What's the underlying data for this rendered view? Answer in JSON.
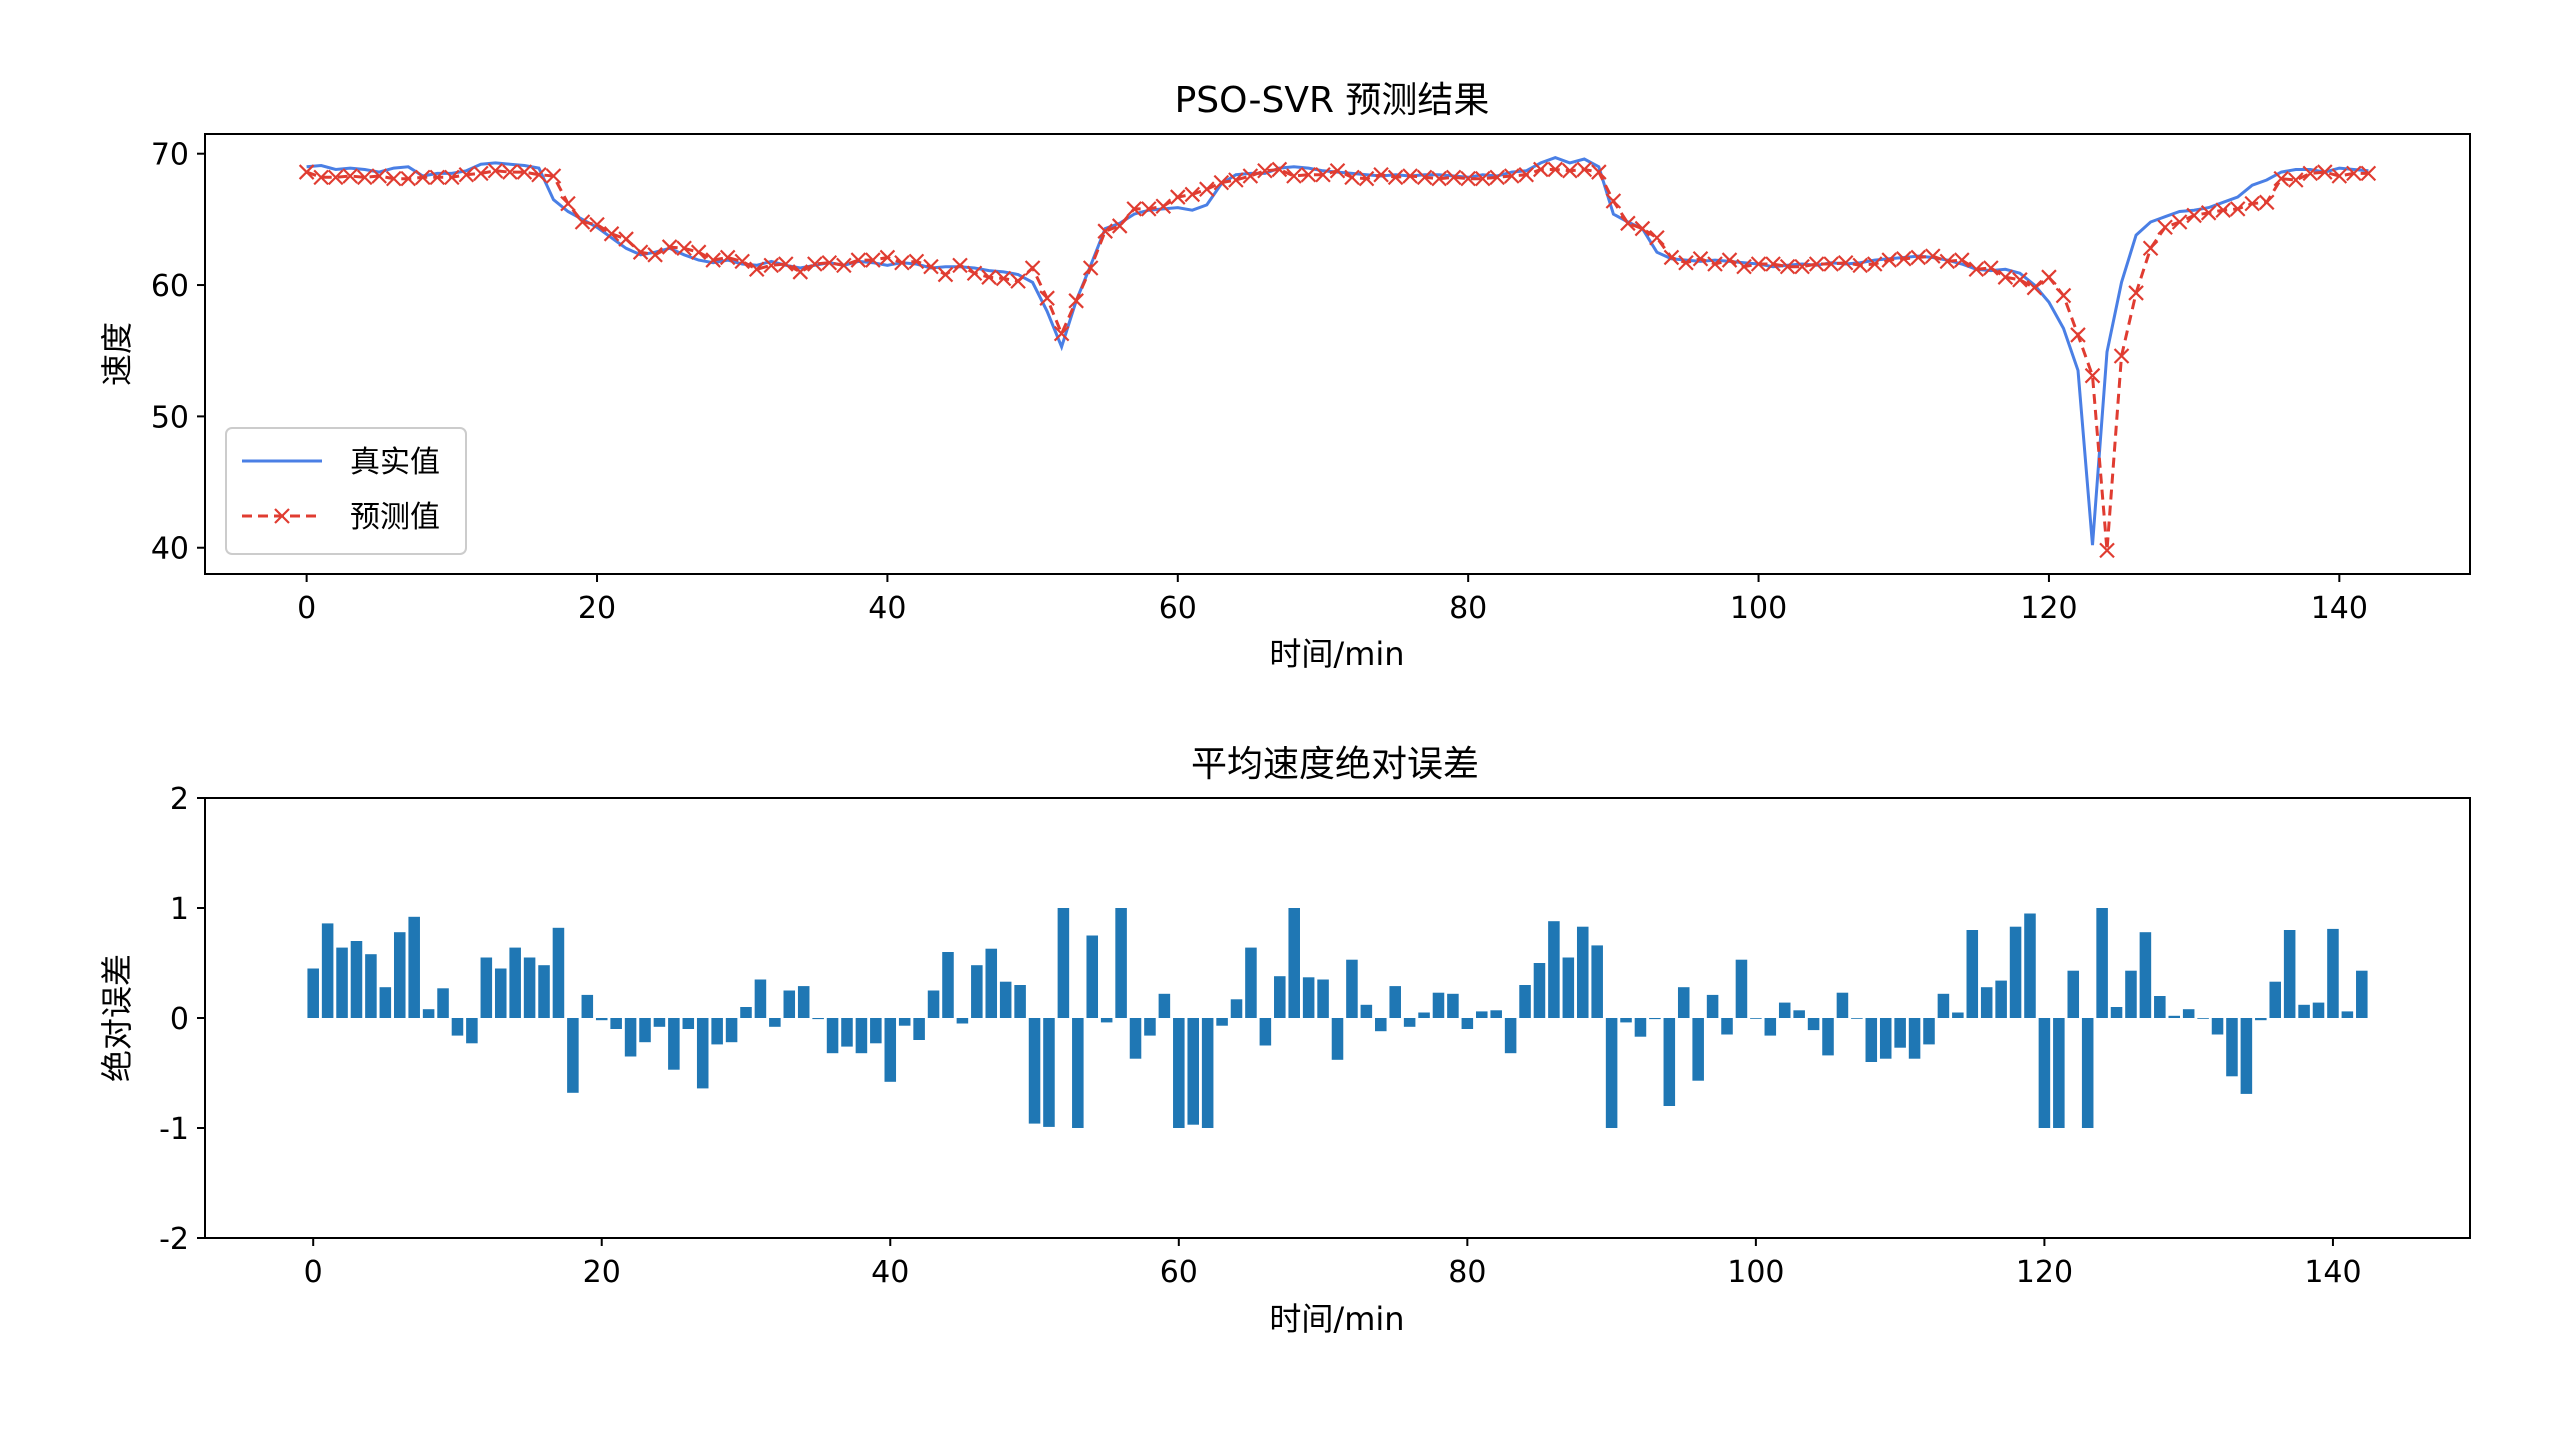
{
  "chart_data": [
    {
      "type": "line",
      "title": "PSO-SVR 预测结果",
      "xlabel": "时间/min",
      "ylabel": "速度",
      "xlim": [
        -7,
        149
      ],
      "ylim": [
        38,
        71.5
      ],
      "xticks": [
        0,
        20,
        40,
        60,
        80,
        100,
        120,
        140
      ],
      "yticks": [
        40,
        50,
        60,
        70
      ],
      "legend_position": "lower-left",
      "series": [
        {
          "name": "真实值",
          "color": "#4a7fe5",
          "style": "solid",
          "x": [
            0,
            1,
            2,
            3,
            4,
            5,
            6,
            7,
            8,
            9,
            10,
            11,
            12,
            13,
            14,
            15,
            16,
            17,
            18,
            19,
            20,
            21,
            22,
            23,
            24,
            25,
            26,
            27,
            28,
            29,
            30,
            31,
            32,
            33,
            34,
            35,
            36,
            37,
            38,
            39,
            40,
            41,
            42,
            43,
            44,
            45,
            46,
            47,
            48,
            49,
            50,
            51,
            52,
            53,
            54,
            55,
            56,
            57,
            58,
            59,
            60,
            61,
            62,
            63,
            64,
            65,
            66,
            67,
            68,
            69,
            70,
            71,
            72,
            73,
            74,
            75,
            76,
            77,
            78,
            79,
            80,
            81,
            82,
            83,
            84,
            85,
            86,
            87,
            88,
            89,
            90,
            91,
            92,
            93,
            94,
            95,
            96,
            97,
            98,
            99,
            100,
            101,
            102,
            103,
            104,
            105,
            106,
            107,
            108,
            109,
            110,
            111,
            112,
            113,
            114,
            115,
            116,
            117,
            118,
            119,
            120,
            121,
            122,
            123,
            124,
            125,
            126,
            127,
            128,
            129,
            130,
            131,
            132,
            133,
            134,
            135,
            136,
            137,
            138,
            139,
            140,
            141,
            142
          ],
          "values": [
            69.0,
            69.1,
            68.8,
            68.9,
            68.8,
            68.6,
            68.9,
            69.0,
            68.3,
            68.5,
            68.5,
            68.7,
            69.2,
            69.3,
            69.2,
            69.1,
            68.9,
            66.5,
            65.6,
            65.0,
            64.4,
            63.6,
            62.8,
            62.3,
            62.5,
            62.8,
            62.3,
            61.9,
            61.7,
            61.9,
            61.6,
            61.5,
            61.8,
            61.5,
            61.3,
            61.5,
            61.7,
            61.5,
            61.8,
            61.7,
            61.5,
            61.7,
            61.6,
            61.3,
            61.4,
            61.4,
            61.3,
            61.1,
            61.0,
            60.8,
            60.2,
            58.0,
            55.3,
            58.8,
            61.5,
            64.3,
            64.7,
            65.4,
            65.7,
            65.8,
            65.9,
            65.7,
            66.1,
            67.7,
            68.4,
            68.5,
            68.5,
            68.9,
            69.0,
            68.9,
            68.7,
            68.6,
            68.5,
            68.4,
            68.3,
            68.4,
            68.3,
            68.4,
            68.4,
            68.3,
            68.2,
            68.4,
            68.3,
            68.6,
            68.7,
            69.3,
            69.7,
            69.3,
            69.6,
            69.0,
            65.4,
            64.8,
            64.3,
            62.5,
            62.0,
            61.9,
            61.8,
            61.9,
            61.8,
            61.7,
            61.6,
            61.4,
            61.5,
            61.6,
            61.5,
            61.7,
            61.6,
            61.7,
            61.9,
            62.0,
            62.1,
            62.2,
            62.1,
            61.9,
            61.6,
            61.2,
            61.1,
            61.2,
            60.9,
            60.0,
            58.7,
            56.7,
            53.5,
            40.2,
            54.9,
            60.2,
            63.8,
            64.8,
            65.2,
            65.6,
            65.7,
            65.9,
            66.3,
            66.7,
            67.6,
            68.0,
            68.6,
            68.8,
            68.8,
            68.6,
            68.9,
            68.8,
            68.7
          ]
        },
        {
          "name": "预测值",
          "color": "#e03c31",
          "style": "dashed-x",
          "x": [
            0,
            1,
            2,
            3,
            4,
            5,
            6,
            7,
            8,
            9,
            10,
            11,
            12,
            13,
            14,
            15,
            16,
            17,
            18,
            19,
            20,
            21,
            22,
            23,
            24,
            25,
            26,
            27,
            28,
            29,
            30,
            31,
            32,
            33,
            34,
            35,
            36,
            37,
            38,
            39,
            40,
            41,
            42,
            43,
            44,
            45,
            46,
            47,
            48,
            49,
            50,
            51,
            52,
            53,
            54,
            55,
            56,
            57,
            58,
            59,
            60,
            61,
            62,
            63,
            64,
            65,
            66,
            67,
            68,
            69,
            70,
            71,
            72,
            73,
            74,
            75,
            76,
            77,
            78,
            79,
            80,
            81,
            82,
            83,
            84,
            85,
            86,
            87,
            88,
            89,
            90,
            91,
            92,
            93,
            94,
            95,
            96,
            97,
            98,
            99,
            100,
            101,
            102,
            103,
            104,
            105,
            106,
            107,
            108,
            109,
            110,
            111,
            112,
            113,
            114,
            115,
            116,
            117,
            118,
            119,
            120,
            121,
            122,
            123,
            124,
            125,
            126,
            127,
            128,
            129,
            130,
            131,
            132,
            133,
            134,
            135,
            136,
            137,
            138,
            139,
            140,
            141,
            142
          ],
          "values": [
            68.6,
            68.2,
            68.2,
            68.3,
            68.2,
            68.3,
            68.1,
            68.1,
            68.2,
            68.2,
            68.2,
            68.4,
            68.5,
            68.7,
            68.6,
            68.6,
            68.4,
            68.3,
            66.2,
            64.8,
            64.6,
            63.9,
            63.5,
            62.5,
            62.3,
            62.9,
            62.8,
            62.5,
            61.9,
            62.1,
            61.8,
            61.2,
            61.5,
            61.6,
            61.0,
            61.6,
            61.7,
            61.5,
            61.9,
            61.9,
            62.1,
            61.7,
            61.8,
            61.4,
            60.8,
            61.5,
            60.9,
            60.6,
            60.5,
            60.3,
            61.3,
            59.0,
            56.3,
            58.8,
            61.3,
            64.1,
            64.5,
            65.8,
            65.8,
            66.0,
            66.7,
            66.9,
            67.3,
            67.8,
            68.0,
            68.3,
            68.7,
            68.8,
            68.3,
            68.4,
            68.4,
            68.7,
            68.2,
            68.1,
            68.4,
            68.2,
            68.3,
            68.2,
            68.1,
            68.2,
            68.1,
            68.1,
            68.2,
            68.3,
            68.4,
            68.8,
            68.8,
            68.7,
            68.8,
            68.6,
            66.4,
            64.7,
            64.3,
            63.6,
            62.1,
            61.7,
            62.0,
            61.6,
            61.9,
            61.4,
            61.6,
            61.6,
            61.4,
            61.4,
            61.6,
            61.6,
            61.7,
            61.5,
            61.6,
            61.9,
            62.0,
            62.1,
            62.2,
            61.8,
            61.9,
            61.2,
            61.3,
            60.6,
            60.4,
            59.8,
            60.6,
            59.2,
            56.2,
            53.1,
            39.8,
            54.6,
            59.4,
            62.8,
            64.4,
            64.8,
            65.3,
            65.5,
            65.7,
            65.8,
            66.2,
            66.3,
            68.1,
            68.0,
            68.5,
            68.6,
            68.3,
            68.5,
            68.5
          ]
        }
      ]
    },
    {
      "type": "bar",
      "title": "平均速度绝对误差",
      "xlabel": "时间/min",
      "ylabel": "绝对误差",
      "xlim": [
        -7.5,
        149.5
      ],
      "ylim": [
        -2,
        2
      ],
      "xticks": [
        0,
        20,
        40,
        60,
        80,
        100,
        120,
        140
      ],
      "yticks": [
        -2,
        -1,
        0,
        1,
        2
      ],
      "bar_color": "#1f77b4",
      "x": [
        0,
        1,
        2,
        3,
        4,
        5,
        6,
        7,
        8,
        9,
        10,
        11,
        12,
        13,
        14,
        15,
        16,
        17,
        18,
        19,
        20,
        21,
        22,
        23,
        24,
        25,
        26,
        27,
        28,
        29,
        30,
        31,
        32,
        33,
        34,
        35,
        36,
        37,
        38,
        39,
        40,
        41,
        42,
        43,
        44,
        45,
        46,
        47,
        48,
        49,
        50,
        51,
        52,
        53,
        54,
        55,
        56,
        57,
        58,
        59,
        60,
        61,
        62,
        63,
        64,
        65,
        66,
        67,
        68,
        69,
        70,
        71,
        72,
        73,
        74,
        75,
        76,
        77,
        78,
        79,
        80,
        81,
        82,
        83,
        84,
        85,
        86,
        87,
        88,
        89,
        90,
        91,
        92,
        93,
        94,
        95,
        96,
        97,
        98,
        99,
        100,
        101,
        102,
        103,
        104,
        105,
        106,
        107,
        108,
        109,
        110,
        111,
        112,
        113,
        114,
        115,
        116,
        117,
        118,
        119,
        120,
        121,
        122,
        123,
        124,
        125,
        126,
        127,
        128,
        129,
        130,
        131,
        132,
        133,
        134,
        135,
        136,
        137,
        138,
        139,
        140,
        141,
        142
      ],
      "values": [
        0.45,
        0.86,
        0.64,
        0.7,
        0.58,
        0.28,
        0.78,
        0.92,
        0.08,
        0.27,
        -0.16,
        -0.23,
        0.55,
        0.45,
        0.64,
        0.55,
        0.48,
        0.82,
        -0.68,
        0.21,
        -0.02,
        -0.1,
        -0.35,
        -0.22,
        -0.08,
        -0.47,
        -0.1,
        -0.64,
        -0.24,
        -0.22,
        0.1,
        0.35,
        -0.08,
        0.25,
        0.29,
        -0.01,
        -0.32,
        -0.26,
        -0.32,
        -0.23,
        -0.58,
        -0.07,
        -0.2,
        0.25,
        0.6,
        -0.05,
        0.48,
        0.63,
        0.33,
        0.3,
        -0.96,
        -0.99,
        1.0,
        -1.0,
        0.75,
        -0.04,
        1.0,
        -0.37,
        -0.16,
        0.22,
        -1.0,
        -0.97,
        -1.0,
        -0.07,
        0.17,
        0.64,
        -0.25,
        0.38,
        1.0,
        0.37,
        0.35,
        -0.38,
        0.53,
        0.12,
        -0.12,
        0.29,
        -0.08,
        0.05,
        0.23,
        0.22,
        -0.1,
        0.06,
        0.07,
        -0.32,
        0.3,
        0.5,
        0.88,
        0.55,
        0.83,
        0.66,
        -1.0,
        -0.04,
        -0.17,
        -0.01,
        -0.8,
        0.28,
        -0.57,
        0.21,
        -0.15,
        0.53,
        0.0,
        -0.16,
        0.14,
        0.07,
        -0.11,
        -0.34,
        0.23,
        0.0,
        -0.4,
        -0.37,
        -0.27,
        -0.37,
        -0.24,
        0.22,
        0.05,
        0.8,
        0.28,
        0.34,
        0.83,
        0.95,
        -1.0,
        -1.0,
        0.43,
        -1.0,
        1.0,
        0.1,
        0.43,
        0.78,
        0.2,
        0.02,
        0.08,
        0.0,
        -0.15,
        -0.53,
        -0.69,
        -0.02,
        0.33,
        0.8,
        0.12,
        0.14,
        0.81,
        0.06,
        0.43
      ]
    }
  ]
}
